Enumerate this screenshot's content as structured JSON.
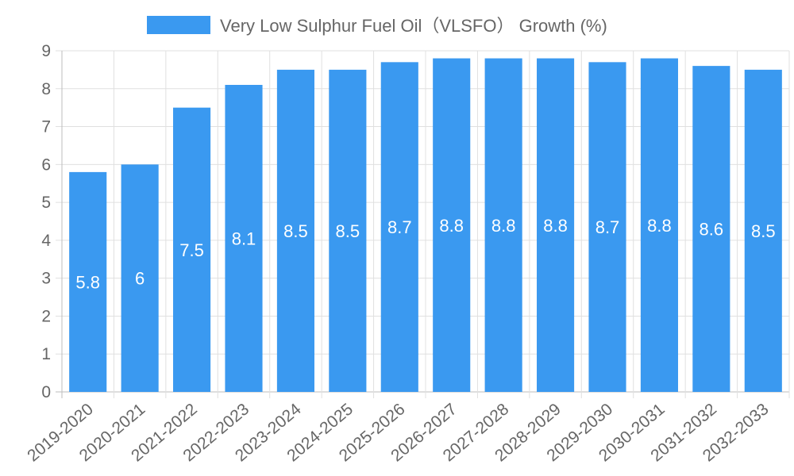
{
  "chart_data": {
    "type": "bar",
    "title": "",
    "xlabel": "",
    "ylabel": "",
    "categories": [
      "2019-2020",
      "2020-2021",
      "2021-2022",
      "2022-2023",
      "2023-2024",
      "2024-2025",
      "2025-2026",
      "2026-2027",
      "2027-2028",
      "2028-2029",
      "2029-2030",
      "2030-2031",
      "2031-2032",
      "2032-2033"
    ],
    "series": [
      {
        "name": "Very Low Sulphur Fuel Oil（VLSFO） Growth (%)",
        "values": [
          5.8,
          6,
          7.5,
          8.1,
          8.5,
          8.5,
          8.7,
          8.8,
          8.8,
          8.8,
          8.7,
          8.8,
          8.6,
          8.5
        ],
        "color": "#3a99f0"
      }
    ],
    "ylim": [
      0,
      9
    ],
    "yticks": [
      0,
      1,
      2,
      3,
      4,
      5,
      6,
      7,
      8,
      9
    ],
    "grid": true,
    "legend_position": "top",
    "data_labels": true
  }
}
